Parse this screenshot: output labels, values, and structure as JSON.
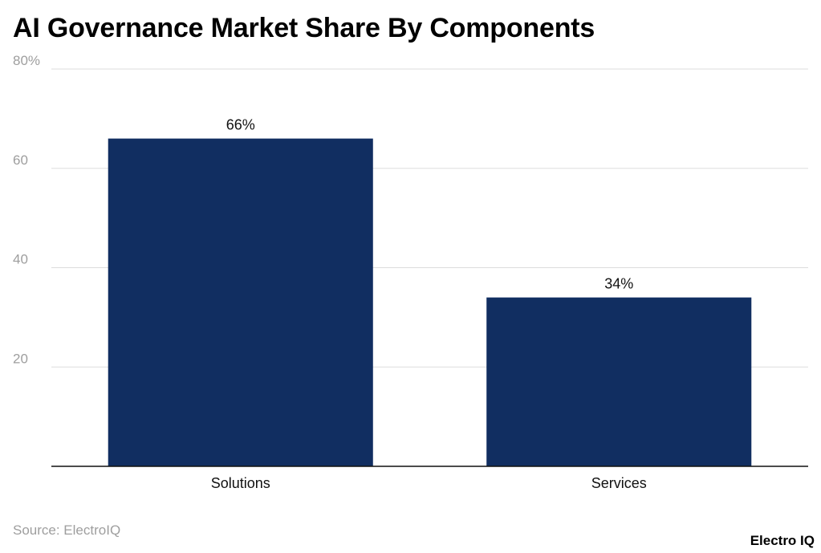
{
  "chart_data": {
    "type": "bar",
    "title": "AI Governance Market Share By Components",
    "categories": [
      "Solutions",
      "Services"
    ],
    "values": [
      66,
      34
    ],
    "value_labels": [
      "66%",
      "34%"
    ],
    "y_ticks": [
      20,
      40,
      60,
      80
    ],
    "y_tick_labels": [
      "20",
      "40",
      "60",
      "80%"
    ],
    "ylim": [
      0,
      80
    ],
    "xlabel": "",
    "ylabel": "",
    "grid": true,
    "legend": "none",
    "bar_color": "#112e61",
    "gridline_color": "#dddddd",
    "tick_label_color": "#9e9e9e"
  },
  "footer": {
    "source": "Source: ElectroIQ",
    "brand": "Electro IQ"
  }
}
